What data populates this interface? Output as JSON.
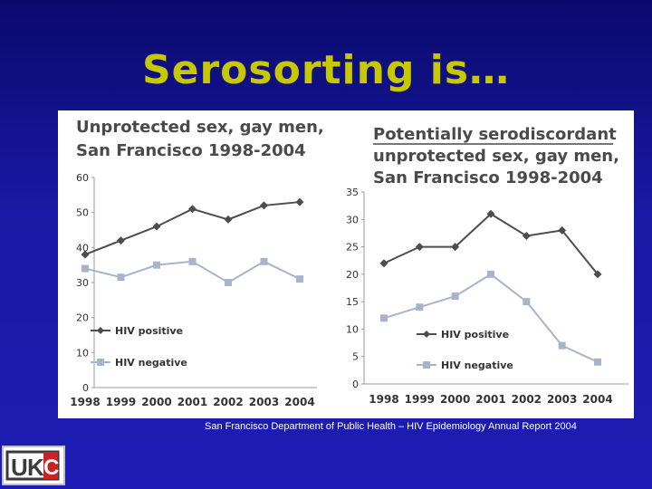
{
  "slide": {
    "title": "Serosorting is…",
    "source": "San Francisco Department of Public Health – HIV Epidemiology Annual Report 2004"
  },
  "logo": {
    "letters": [
      "U",
      "K",
      "C"
    ],
    "colors": {
      "frame": "#3a3a3a",
      "red": "#cc2222"
    }
  },
  "colors": {
    "hiv_positive": "#4d4d4d",
    "hiv_negative": "#a7b4c9",
    "title_yellow": "#c8c800",
    "background": "#1a1aa6"
  },
  "chart_data": [
    {
      "type": "line",
      "title": [
        "Unprotected sex, gay men,",
        "San Francisco 1998-2004"
      ],
      "x": [
        "1998",
        "1999",
        "2000",
        "2001",
        "2002",
        "2003",
        "2004"
      ],
      "yticks": [
        "0",
        "10",
        "20",
        "30",
        "40",
        "50",
        "60"
      ],
      "ylim": [
        0,
        60
      ],
      "grid": false,
      "legend_position": "lower-left",
      "series": [
        {
          "name": "HIV positive",
          "marker": "diamond",
          "values": [
            38,
            42,
            46,
            51,
            48,
            52,
            53
          ]
        },
        {
          "name": "HIV negative",
          "marker": "square",
          "values": [
            34,
            31.5,
            35,
            36,
            30,
            36,
            31
          ]
        }
      ]
    },
    {
      "type": "line",
      "title": [
        "Potentially serodiscordant",
        "unprotected sex, gay men,",
        "San Francisco 1998-2004"
      ],
      "title_underline_first_line": true,
      "x": [
        "1998",
        "1999",
        "2000",
        "2001",
        "2002",
        "2003",
        "2004"
      ],
      "yticks": [
        "0",
        "5",
        "10",
        "15",
        "20",
        "25",
        "30",
        "35"
      ],
      "ylim": [
        0,
        35
      ],
      "grid": false,
      "legend_position": "lower-left",
      "series": [
        {
          "name": "HIV positive",
          "marker": "diamond",
          "values": [
            22,
            25,
            25,
            31,
            27,
            28,
            20
          ]
        },
        {
          "name": "HIV negative",
          "marker": "square",
          "values": [
            12,
            14,
            16,
            20,
            15,
            7,
            4
          ]
        }
      ]
    }
  ]
}
